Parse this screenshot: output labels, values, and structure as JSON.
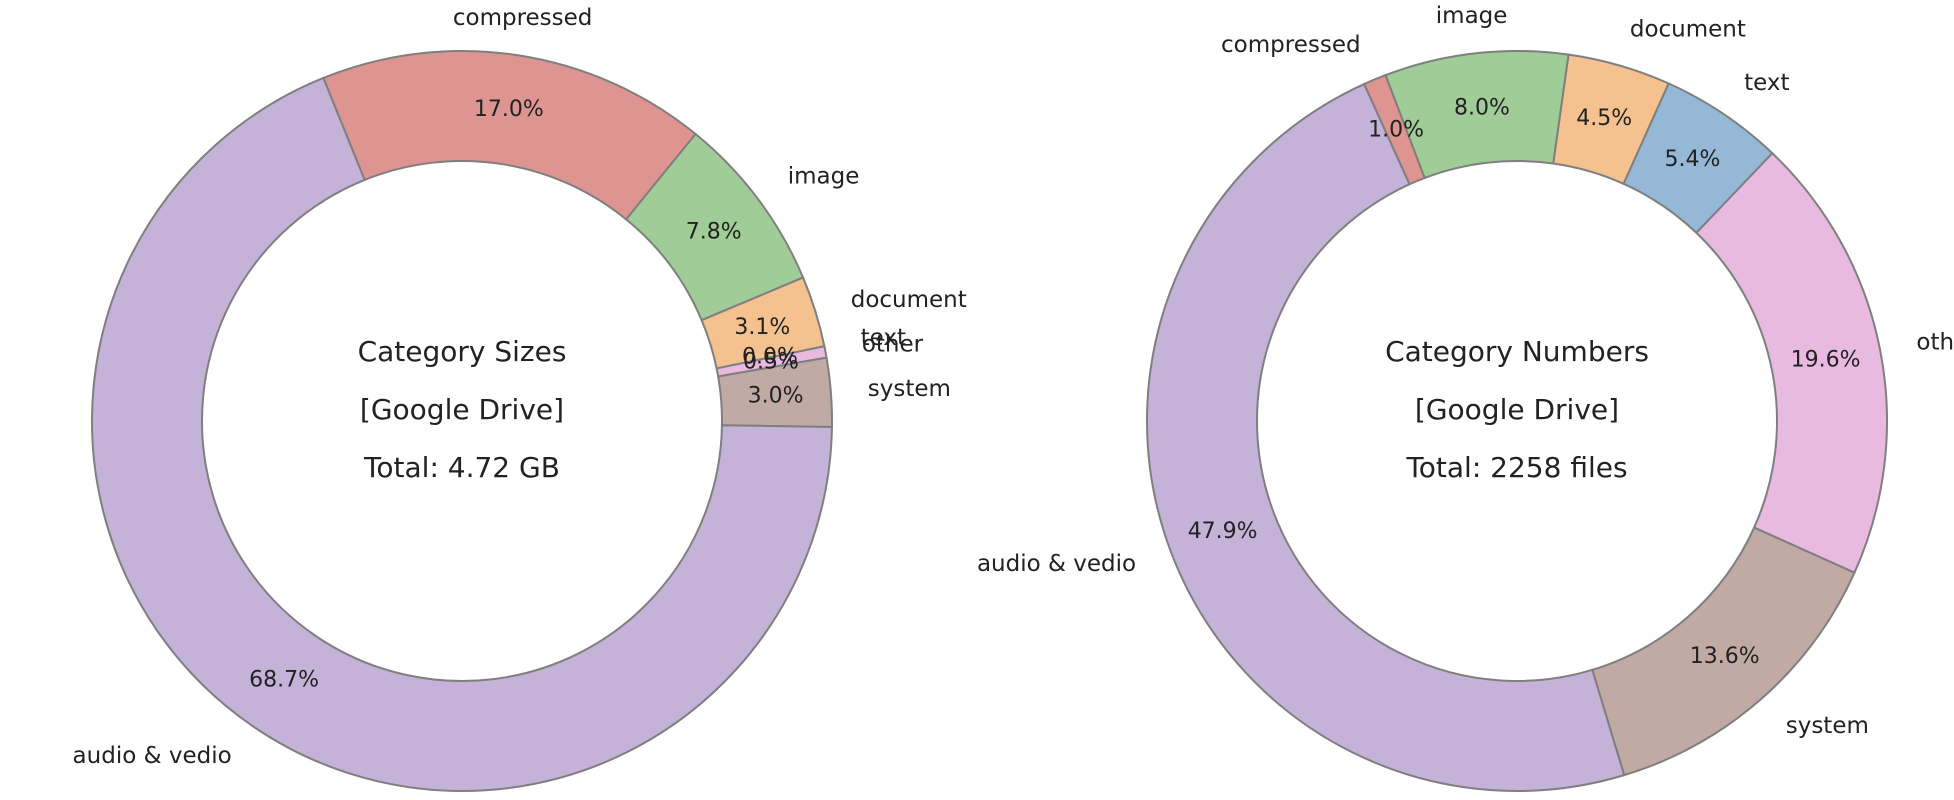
{
  "chart_data": [
    {
      "type": "pie",
      "donut": true,
      "title_lines": [
        "Category Sizes",
        "[Google Drive]",
        "Total: 4.72 GB"
      ],
      "slices": [
        {
          "label": "compressed",
          "value": 17.0,
          "pct_text": "17.0%",
          "color": "#de9592"
        },
        {
          "label": "image",
          "value": 7.8,
          "pct_text": "7.8%",
          "color": "#a0cc98"
        },
        {
          "label": "document",
          "value": 3.1,
          "pct_text": "3.1%",
          "color": "#f5c18e"
        },
        {
          "label": "text",
          "value": 0.0,
          "pct_text": "0.0%",
          "color": "#94b8d6"
        },
        {
          "label": "other",
          "value": 0.5,
          "pct_text": "0.5%",
          "color": "#e8badf"
        },
        {
          "label": "system",
          "value": 3.0,
          "pct_text": "3.0%",
          "color": "#c0aaa3"
        },
        {
          "label": "audio & vedio",
          "value": 68.7,
          "pct_text": "68.7%",
          "color": "#c4b2d8"
        }
      ]
    },
    {
      "type": "pie",
      "donut": true,
      "title_lines": [
        "Category Numbers",
        "[Google Drive]",
        "Total: 2258 files"
      ],
      "slices": [
        {
          "label": "document",
          "value": 4.5,
          "pct_text": "4.5%",
          "color": "#f5c18e"
        },
        {
          "label": "text",
          "value": 5.4,
          "pct_text": "5.4%",
          "color": "#94b8d6"
        },
        {
          "label": "other",
          "value": 19.6,
          "pct_text": "19.6%",
          "color": "#e8badf"
        },
        {
          "label": "system",
          "value": 13.6,
          "pct_text": "13.6%",
          "color": "#c0aaa3"
        },
        {
          "label": "audio & vedio",
          "value": 47.9,
          "pct_text": "47.9%",
          "color": "#c4b2d8"
        },
        {
          "label": "compressed",
          "value": 1.0,
          "pct_text": "1.0%",
          "color": "#de9592"
        },
        {
          "label": "image",
          "value": 8.0,
          "pct_text": "8.0%",
          "color": "#a0cc98"
        }
      ]
    }
  ]
}
